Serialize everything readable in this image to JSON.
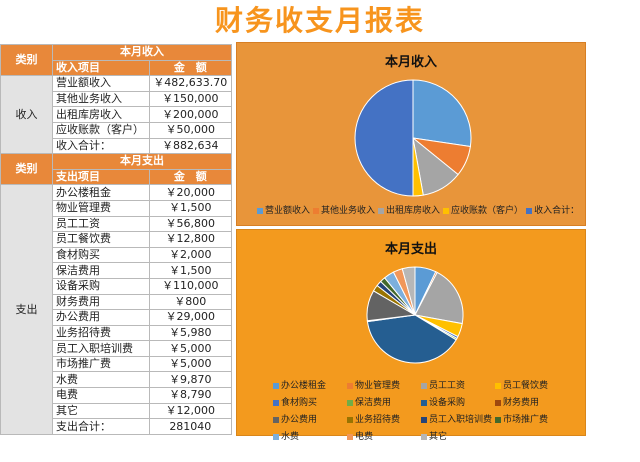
{
  "title": "财务收支月报表",
  "sections": {
    "category_label": "类别",
    "income": {
      "header": "本月收入",
      "col_item": "收入项目",
      "col_amount": "金　额",
      "category": "收入",
      "rows": [
        {
          "item": "营业额收入",
          "amount": "￥482,633.70"
        },
        {
          "item": "其他业务收入",
          "amount": "￥150,000"
        },
        {
          "item": "出租库房收入",
          "amount": "￥200,000"
        },
        {
          "item": "应收账款（客户）",
          "amount": "￥50,000"
        }
      ],
      "total_label": "收入合计：",
      "total_amount": "￥882,634"
    },
    "expense": {
      "header": "本月支出",
      "col_item": "支出项目",
      "col_amount": "金　额",
      "category": "支出",
      "rows": [
        {
          "item": "办公楼租金",
          "amount": "￥20,000"
        },
        {
          "item": "物业管理费",
          "amount": "￥1,500"
        },
        {
          "item": "员工工资",
          "amount": "￥56,800"
        },
        {
          "item": "员工餐饮费",
          "amount": "￥12,800"
        },
        {
          "item": "食材购买",
          "amount": "￥2,000"
        },
        {
          "item": "保洁费用",
          "amount": "￥1,500"
        },
        {
          "item": "设备采购",
          "amount": "￥110,000"
        },
        {
          "item": "财务费用",
          "amount": "￥800"
        },
        {
          "item": "办公费用",
          "amount": "￥29,000"
        },
        {
          "item": "业务招待费",
          "amount": "￥5,980"
        },
        {
          "item": "员工入职培训费",
          "amount": "￥5,000"
        },
        {
          "item": "市场推广费",
          "amount": "￥5,000"
        },
        {
          "item": "水费",
          "amount": "￥9,870"
        },
        {
          "item": "电费",
          "amount": "￥8,790"
        },
        {
          "item": "其它",
          "amount": "￥12,000"
        }
      ],
      "total_label": "支出合计：",
      "total_amount": "281040"
    }
  },
  "chart_data": [
    {
      "type": "pie",
      "title": "本月收入",
      "categories": [
        "营业额收入",
        "其他业务收入",
        "出租库房收入",
        "应收账款（客户）",
        "收入合计："
      ],
      "values": [
        482633.7,
        150000,
        200000,
        50000,
        882634
      ],
      "colors": [
        "#5B9BD5",
        "#ED7D31",
        "#A5A5A5",
        "#FFC000",
        "#4472C4"
      ],
      "legend": "bottom"
    },
    {
      "type": "pie",
      "title": "本月支出",
      "categories": [
        "办公楼租金",
        "物业管理费",
        "员工工资",
        "员工餐饮费",
        "食材购买",
        "保洁费用",
        "设备采购",
        "财务费用",
        "办公费用",
        "业务招待费",
        "员工入职培训费",
        "市场推广费",
        "水费",
        "电费",
        "其它"
      ],
      "values": [
        20000,
        1500,
        56800,
        12800,
        2000,
        1500,
        110000,
        800,
        29000,
        5980,
        5000,
        5000,
        9870,
        8790,
        12000
      ],
      "colors": [
        "#5B9BD5",
        "#ED7D31",
        "#A5A5A5",
        "#FFC000",
        "#4472C4",
        "#70AD47",
        "#255E91",
        "#9E480E",
        "#636363",
        "#997300",
        "#264478",
        "#43682B",
        "#7CAFDD",
        "#F1975A",
        "#B7B7B7"
      ],
      "legend": "bottom"
    }
  ]
}
